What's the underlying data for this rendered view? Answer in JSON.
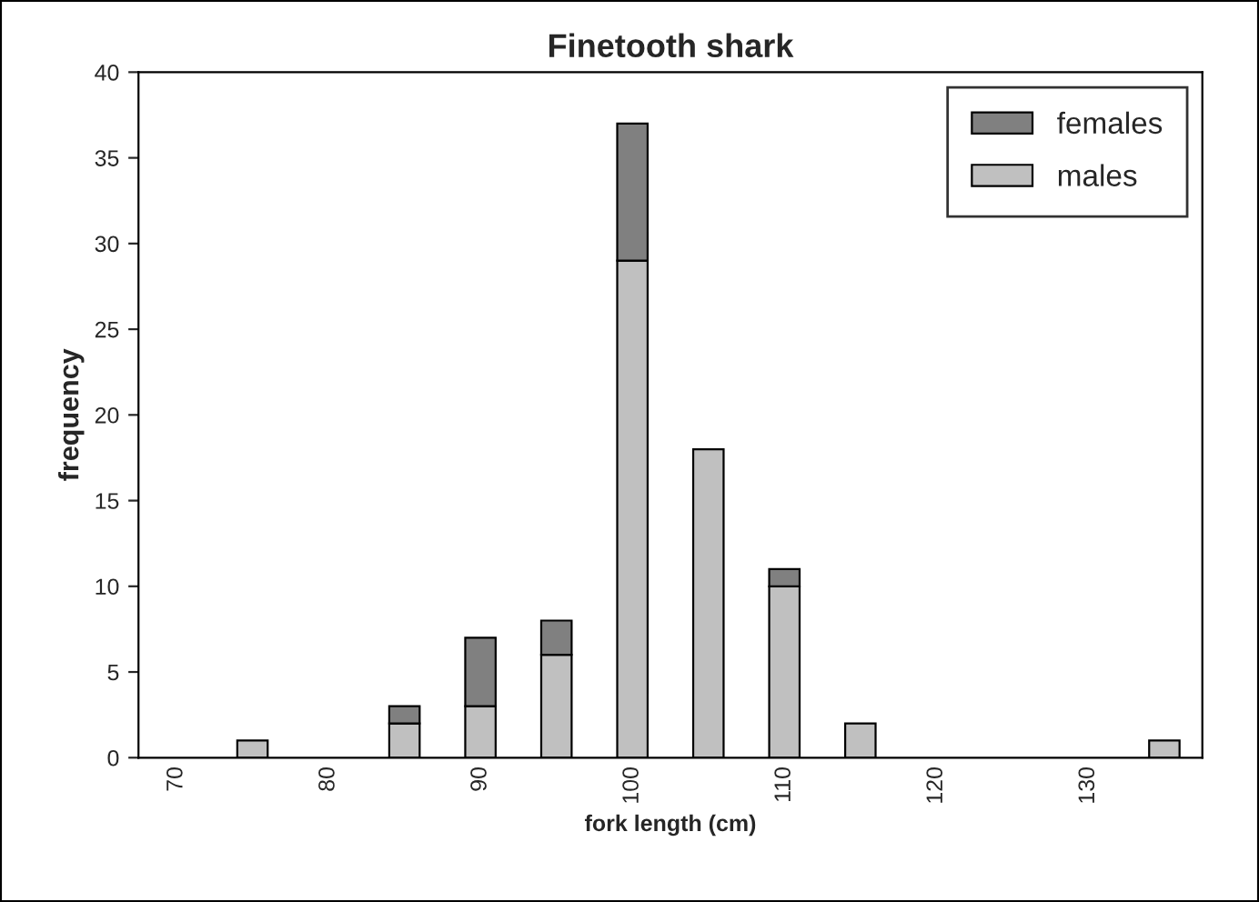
{
  "chart_data": {
    "type": "bar",
    "title": "Finetooth shark",
    "xlabel": "fork length (cm)",
    "ylabel": "frequency",
    "categories": [
      "70",
      null,
      "80",
      null,
      "90",
      null,
      "100",
      null,
      "110",
      null,
      "120",
      null,
      "130",
      null
    ],
    "stacked": true,
    "series": [
      {
        "name": "males",
        "color": "#c0c0c0",
        "values": [
          null,
          1,
          null,
          2,
          3,
          6,
          29,
          18,
          10,
          2,
          null,
          null,
          null,
          1
        ]
      },
      {
        "name": "females",
        "color": "#808080",
        "values": [
          null,
          null,
          null,
          1,
          4,
          2,
          8,
          null,
          1,
          null,
          null,
          null,
          null,
          null
        ]
      }
    ],
    "ylim": [
      0,
      40
    ],
    "yticks": [
      0,
      5,
      10,
      15,
      20,
      25,
      30,
      35,
      40
    ],
    "grid": false,
    "legend": "top right"
  }
}
